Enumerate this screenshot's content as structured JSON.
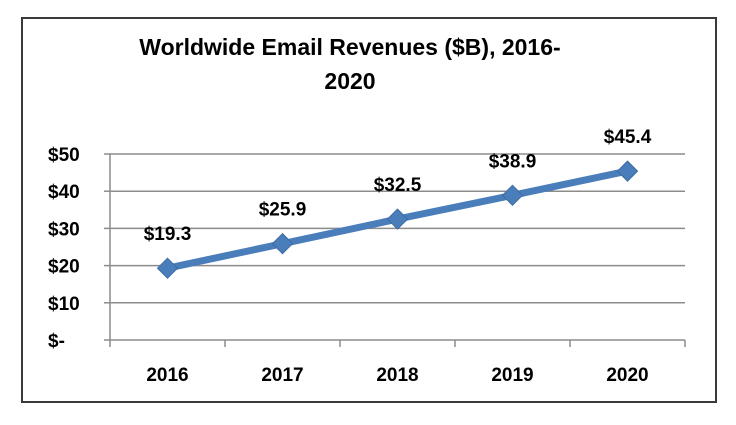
{
  "chart_data": {
    "type": "line",
    "title": "Worldwide Email Revenues ($B), 2016-2020",
    "title_lines": [
      "Worldwide Email Revenues ($B), 2016-",
      "2020"
    ],
    "categories": [
      "2016",
      "2017",
      "2018",
      "2019",
      "2020"
    ],
    "series": [
      {
        "name": "Worldwide Email Revenues ($B)",
        "values": [
          19.3,
          25.9,
          32.5,
          38.9,
          45.4
        ],
        "data_labels": [
          "$19.3",
          "$25.9",
          "$32.5",
          "$38.9",
          "$45.4"
        ],
        "color": "#4a7ebb",
        "marker": "diamond"
      }
    ],
    "y_ticks": [
      0,
      10,
      20,
      30,
      40,
      50
    ],
    "y_tick_labels": [
      "$-",
      "$10",
      "$20",
      "$30",
      "$40",
      "$50"
    ],
    "ylim": [
      0,
      50
    ],
    "xlabel": "",
    "ylabel": "",
    "grid": true,
    "legend": "none",
    "colors": {
      "line": "#4a7ebb",
      "grid": "#8c8c8c",
      "axis": "#8c8c8c",
      "text": "#000000",
      "frame": "#3a3a3a"
    }
  }
}
